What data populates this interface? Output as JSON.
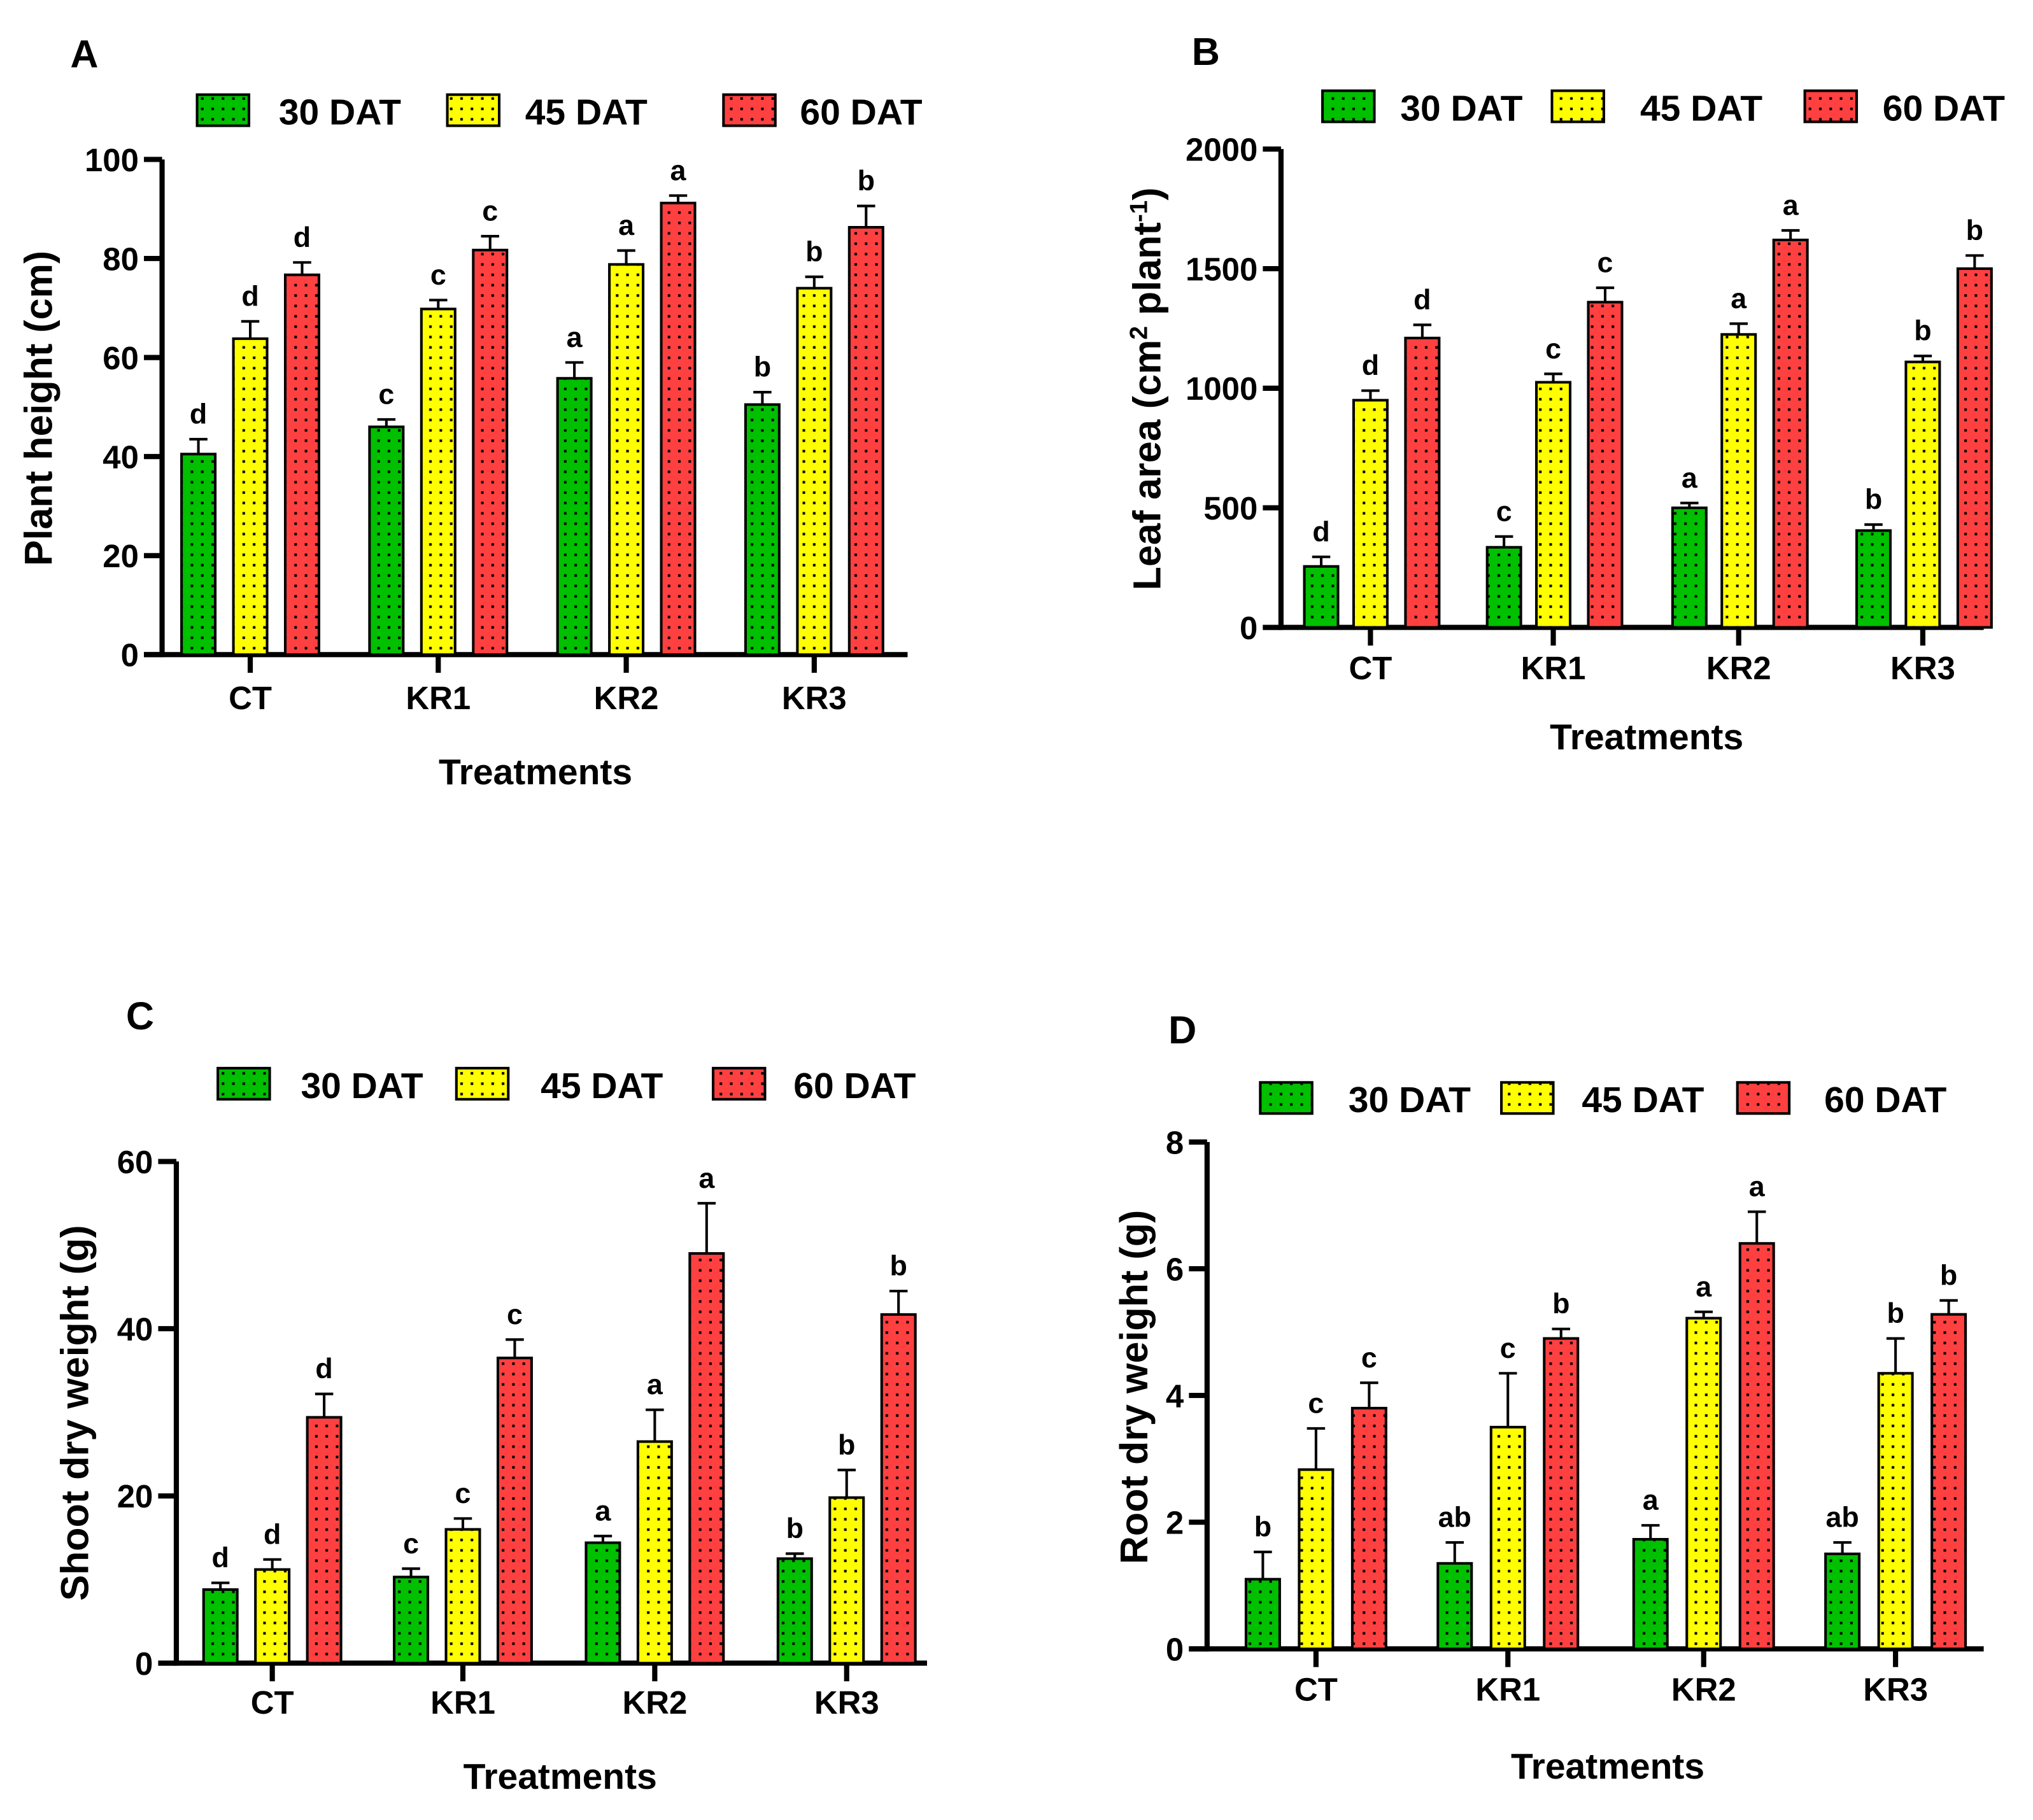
{
  "colors": {
    "30 DAT": "#00c000",
    "45 DAT": "#ffff00",
    "60 DAT": "#ff4040"
  },
  "chart_data": [
    {
      "panel": "A",
      "type": "bar",
      "title": "",
      "xlabel": "Treatments",
      "ylabel": "Plant height (cm)",
      "ylim": [
        0,
        100
      ],
      "yticks": [
        "0",
        "20",
        "40",
        "60",
        "80",
        "100"
      ],
      "categories": [
        "CT",
        "KR1",
        "KR2",
        "KR3"
      ],
      "legend_position": "top",
      "series": [
        {
          "name": "30 DAT",
          "values": [
            40.5,
            46.0,
            55.8,
            50.5
          ],
          "errors": [
            3.0,
            1.5,
            3.2,
            2.5
          ],
          "letters": [
            "d",
            "c",
            "a",
            "b"
          ]
        },
        {
          "name": "45 DAT",
          "values": [
            63.8,
            69.8,
            78.8,
            74.0
          ],
          "errors": [
            3.5,
            1.8,
            2.8,
            2.3
          ],
          "letters": [
            "d",
            "c",
            "a",
            "b"
          ]
        },
        {
          "name": "60 DAT",
          "values": [
            76.7,
            81.7,
            91.2,
            86.3
          ],
          "errors": [
            2.5,
            2.8,
            1.5,
            4.3
          ],
          "letters": [
            "d",
            "c",
            "a",
            "b"
          ]
        }
      ]
    },
    {
      "panel": "B",
      "type": "bar",
      "title": "",
      "xlabel": "Treatments",
      "ylabel": "Leaf area (cm2 plant-1)",
      "ylabel_parts": [
        "Leaf area (cm",
        "2",
        " plant",
        "-1",
        ")"
      ],
      "ylim": [
        0,
        2000
      ],
      "yticks": [
        "0",
        "500",
        "1000",
        "1500",
        "2000"
      ],
      "categories": [
        "CT",
        "KR1",
        "KR2",
        "KR3"
      ],
      "legend_position": "top",
      "series": [
        {
          "name": "30 DAT",
          "values": [
            255,
            335,
            500,
            405
          ],
          "errors": [
            40,
            45,
            20,
            25
          ],
          "letters": [
            "d",
            "c",
            "a",
            "b"
          ]
        },
        {
          "name": "45 DAT",
          "values": [
            950,
            1025,
            1225,
            1110
          ],
          "errors": [
            40,
            35,
            45,
            25
          ],
          "letters": [
            "d",
            "c",
            "a",
            "b"
          ]
        },
        {
          "name": "60 DAT",
          "values": [
            1210,
            1360,
            1620,
            1500
          ],
          "errors": [
            55,
            60,
            40,
            55
          ],
          "letters": [
            "d",
            "c",
            "a",
            "b"
          ]
        }
      ]
    },
    {
      "panel": "C",
      "type": "bar",
      "title": "",
      "xlabel": "Treatments",
      "ylabel": "Shoot dry weight (g)",
      "ylim": [
        0,
        60
      ],
      "yticks": [
        "0",
        "20",
        "40",
        "60"
      ],
      "categories": [
        "CT",
        "KR1",
        "KR2",
        "KR3"
      ],
      "legend_position": "top",
      "series": [
        {
          "name": "30 DAT",
          "values": [
            8.8,
            10.3,
            14.4,
            12.5
          ],
          "errors": [
            0.8,
            1.0,
            0.8,
            0.6
          ],
          "letters": [
            "d",
            "c",
            "a",
            "b"
          ]
        },
        {
          "name": "45 DAT",
          "values": [
            11.2,
            16.0,
            26.5,
            19.8
          ],
          "errors": [
            1.2,
            1.3,
            3.8,
            3.3
          ],
          "letters": [
            "d",
            "c",
            "a",
            "b"
          ]
        },
        {
          "name": "60 DAT",
          "values": [
            29.4,
            36.5,
            49.0,
            41.7
          ],
          "errors": [
            2.8,
            2.2,
            6.0,
            2.8
          ],
          "letters": [
            "d",
            "c",
            "a",
            "b"
          ]
        }
      ]
    },
    {
      "panel": "D",
      "type": "bar",
      "title": "",
      "xlabel": "Treatments",
      "ylabel": "Root dry weight (g)",
      "ylim": [
        0,
        8
      ],
      "yticks": [
        "0",
        "2",
        "4",
        "6",
        "8"
      ],
      "categories": [
        "CT",
        "KR1",
        "KR2",
        "KR3"
      ],
      "legend_position": "top",
      "series": [
        {
          "name": "30 DAT",
          "values": [
            1.1,
            1.35,
            1.73,
            1.5
          ],
          "errors": [
            0.43,
            0.33,
            0.22,
            0.18
          ],
          "letters": [
            "b",
            "ab",
            "a",
            "ab"
          ]
        },
        {
          "name": "45 DAT",
          "values": [
            2.83,
            3.5,
            5.22,
            4.35
          ],
          "errors": [
            0.65,
            0.85,
            0.1,
            0.55
          ],
          "letters": [
            "c",
            "c",
            "a",
            "b"
          ]
        },
        {
          "name": "60 DAT",
          "values": [
            3.8,
            4.9,
            6.4,
            5.28
          ],
          "errors": [
            0.4,
            0.15,
            0.5,
            0.22
          ],
          "letters": [
            "c",
            "b",
            "a",
            "b"
          ]
        }
      ]
    }
  ]
}
